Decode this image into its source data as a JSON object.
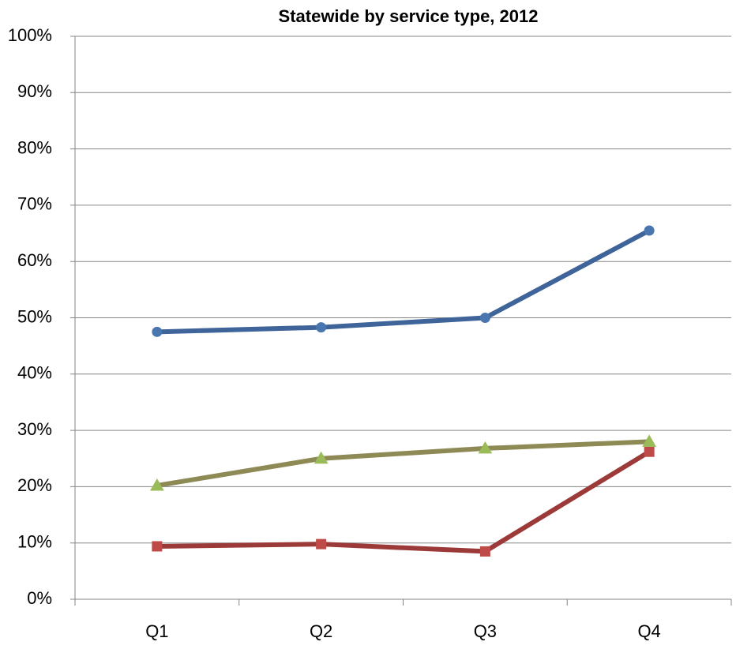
{
  "chart_data": {
    "type": "line",
    "title": "Statewide by service type, 2012",
    "categories": [
      "Q1",
      "Q2",
      "Q3",
      "Q4"
    ],
    "series": [
      {
        "color": "#3e649a",
        "marker": "circle",
        "marker_color": "#4a76b0",
        "values": [
          47.5,
          48.3,
          50,
          65.5
        ]
      },
      {
        "color": "#9b3a39",
        "marker": "square",
        "marker_color": "#be4b48",
        "values": [
          9.4,
          9.8,
          8.5,
          26.2
        ]
      },
      {
        "color": "#8e8a56",
        "marker": "triangle",
        "marker_color": "#9bbb59",
        "values": [
          20.2,
          25,
          26.8,
          28
        ]
      }
    ],
    "ylim": [
      0,
      100
    ],
    "yticks": [
      {
        "value": 0,
        "label": "0%"
      },
      {
        "value": 10,
        "label": "10%"
      },
      {
        "value": 20,
        "label": "20%"
      },
      {
        "value": 30,
        "label": "30%"
      },
      {
        "value": 40,
        "label": "40%"
      },
      {
        "value": 50,
        "label": "50%"
      },
      {
        "value": 60,
        "label": "60%"
      },
      {
        "value": 70,
        "label": "70%"
      },
      {
        "value": 80,
        "label": "80%"
      },
      {
        "value": 90,
        "label": "90%"
      },
      {
        "value": 100,
        "label": "100%"
      }
    ],
    "grid": true
  }
}
